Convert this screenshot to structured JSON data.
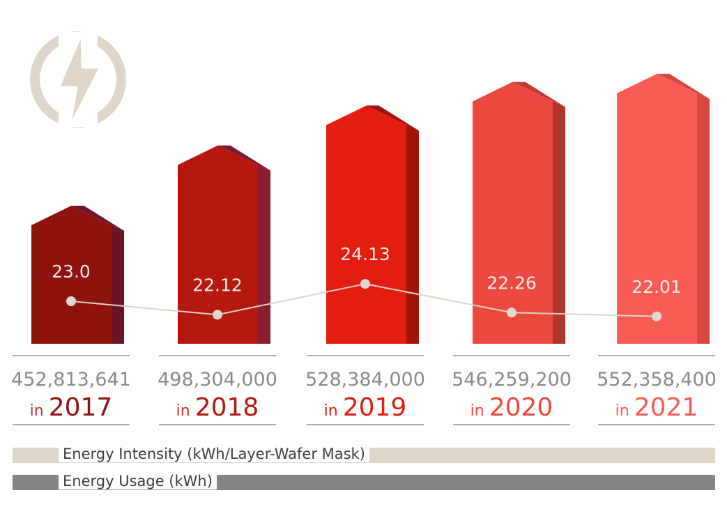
{
  "chart_data": {
    "type": "bar",
    "title": "",
    "categories": [
      "2017",
      "2018",
      "2019",
      "2020",
      "2021"
    ],
    "year_prefix": "in",
    "year_labels": [
      "2017",
      "2018",
      "2019",
      "2020",
      "2021"
    ],
    "usage_labels": [
      "452,813,641",
      "498,304,000",
      "528,384,000",
      "546,259,200",
      "552,358,400"
    ],
    "intensity_labels": [
      "23.0",
      "22.12",
      "24.13",
      "22.26",
      "22.01"
    ],
    "series": [
      {
        "name": "Energy Usage (kWh)",
        "type": "bar",
        "values": [
          452813641,
          498304000,
          528384000,
          546259200,
          552358400
        ]
      },
      {
        "name": "Energy Intensity (kWh/Layer-Wafer Mask)",
        "type": "line",
        "values": [
          23.0,
          22.12,
          24.13,
          22.26,
          22.01
        ]
      }
    ],
    "legend": [
      {
        "label": "Energy Intensity (kWh/Layer-Wafer Mask)",
        "color": "#dfd6ca"
      },
      {
        "label": "Energy Usage (kWh)",
        "color": "#858585"
      }
    ],
    "legend_placement": "bottom"
  },
  "colors": {
    "bar_fronts": [
      "#8e130f",
      "#b5180f",
      "#e31d10",
      "#eb493f",
      "#f75d55"
    ],
    "bar_sides": [
      "#6b1428",
      "#8c1d2d",
      "#a3130b",
      "#b0352d",
      "#d8473f"
    ],
    "bar_tops": [
      "#6e1430",
      "#7d1a33",
      "#a3130b",
      "#c23a30",
      "#d04a40"
    ],
    "year_colors": [
      "#8e130f",
      "#b5180f",
      "#e31d10",
      "#eb493f",
      "#f75d55"
    ],
    "in_colors": [
      "#c0392b",
      "#c0392b",
      "#e31d10",
      "#eb493f",
      "#f75d55"
    ],
    "line": "#ddd4c8",
    "dot": "#e0d8cc",
    "divider": "#555555",
    "number_text": "#8a8a8a",
    "icon": "#dfd6ca"
  },
  "icon": {
    "name": "lightning-bolt-icon"
  }
}
